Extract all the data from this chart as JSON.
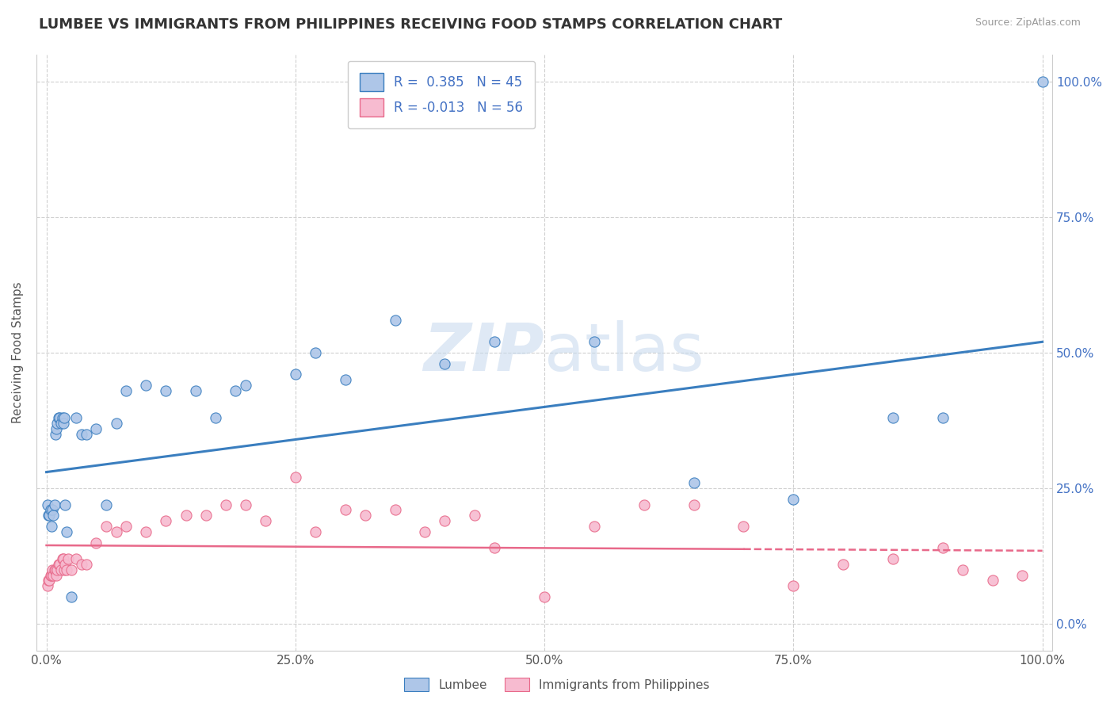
{
  "title": "LUMBEE VS IMMIGRANTS FROM PHILIPPINES RECEIVING FOOD STAMPS CORRELATION CHART",
  "source": "Source: ZipAtlas.com",
  "ylabel": "Receiving Food Stamps",
  "watermark": "ZIPatlas",
  "lumbee_R": 0.385,
  "lumbee_N": 45,
  "philippines_R": -0.013,
  "philippines_N": 56,
  "lumbee_color": "#aec6e8",
  "lumbee_line_color": "#3a7ebf",
  "philippines_color": "#f7bbd0",
  "philippines_line_color": "#e8698a",
  "lumbee_x": [
    0.1,
    0.2,
    0.3,
    0.4,
    0.5,
    0.6,
    0.7,
    0.8,
    0.9,
    1.0,
    1.1,
    1.2,
    1.3,
    1.5,
    1.6,
    1.7,
    1.8,
    1.9,
    2.0,
    2.5,
    3.0,
    3.5,
    4.0,
    5.0,
    6.0,
    7.0,
    8.0,
    10.0,
    12.0,
    15.0,
    17.0,
    19.0,
    20.0,
    25.0,
    27.0,
    30.0,
    35.0,
    40.0,
    45.0,
    55.0,
    65.0,
    75.0,
    85.0,
    90.0,
    100.0
  ],
  "lumbee_y": [
    22.0,
    20.0,
    20.0,
    21.0,
    18.0,
    21.0,
    20.0,
    22.0,
    35.0,
    36.0,
    37.0,
    38.0,
    38.0,
    37.0,
    38.0,
    37.0,
    38.0,
    22.0,
    17.0,
    5.0,
    38.0,
    35.0,
    35.0,
    36.0,
    22.0,
    37.0,
    43.0,
    44.0,
    43.0,
    43.0,
    38.0,
    43.0,
    44.0,
    46.0,
    50.0,
    45.0,
    56.0,
    48.0,
    52.0,
    52.0,
    26.0,
    23.0,
    38.0,
    38.0,
    100.0
  ],
  "philippines_x": [
    0.1,
    0.2,
    0.3,
    0.4,
    0.5,
    0.6,
    0.7,
    0.8,
    0.9,
    1.0,
    1.1,
    1.2,
    1.3,
    1.5,
    1.6,
    1.7,
    1.8,
    1.9,
    2.0,
    2.2,
    2.5,
    3.0,
    3.5,
    4.0,
    5.0,
    6.0,
    7.0,
    8.0,
    10.0,
    12.0,
    14.0,
    16.0,
    18.0,
    20.0,
    22.0,
    25.0,
    27.0,
    30.0,
    32.0,
    35.0,
    38.0,
    40.0,
    43.0,
    45.0,
    50.0,
    55.0,
    60.0,
    65.0,
    70.0,
    75.0,
    80.0,
    85.0,
    90.0,
    92.0,
    95.0,
    98.0
  ],
  "philippines_y": [
    7.0,
    8.0,
    8.0,
    9.0,
    9.0,
    10.0,
    9.0,
    10.0,
    10.0,
    9.0,
    10.0,
    11.0,
    11.0,
    10.0,
    12.0,
    12.0,
    10.0,
    11.0,
    10.0,
    12.0,
    10.0,
    12.0,
    11.0,
    11.0,
    15.0,
    18.0,
    17.0,
    18.0,
    17.0,
    19.0,
    20.0,
    20.0,
    22.0,
    22.0,
    19.0,
    27.0,
    17.0,
    21.0,
    20.0,
    21.0,
    17.0,
    19.0,
    20.0,
    14.0,
    5.0,
    18.0,
    22.0,
    22.0,
    18.0,
    7.0,
    11.0,
    12.0,
    14.0,
    10.0,
    8.0,
    9.0
  ],
  "lumbee_reg_x0": 0.0,
  "lumbee_reg_y0": 28.0,
  "lumbee_reg_x1": 100.0,
  "lumbee_reg_y1": 52.0,
  "phil_reg_x0": 0.0,
  "phil_reg_y0": 14.5,
  "phil_reg_x1": 100.0,
  "phil_reg_y1": 13.5,
  "phil_dash_start": 70.0,
  "xmin": 0.0,
  "xmax": 100.0,
  "ymin": -5.0,
  "ymax": 105.0,
  "xticks": [
    0.0,
    25.0,
    50.0,
    75.0,
    100.0
  ],
  "yticks": [
    0.0,
    25.0,
    50.0,
    75.0,
    100.0
  ],
  "xtick_labels": [
    "0.0%",
    "25.0%",
    "50.0%",
    "75.0%",
    "100.0%"
  ],
  "ytick_labels_right": [
    "0.0%",
    "25.0%",
    "50.0%",
    "75.0%",
    "100.0%"
  ],
  "grid_color": "#d0d0d0",
  "background_color": "#ffffff",
  "title_color": "#333333",
  "source_color": "#999999",
  "ylabel_color": "#555555",
  "tick_color_right": "#4472c4",
  "tick_color_bottom": "#555555",
  "title_fontsize": 13,
  "label_fontsize": 11,
  "tick_fontsize": 11,
  "legend_fontsize": 12
}
